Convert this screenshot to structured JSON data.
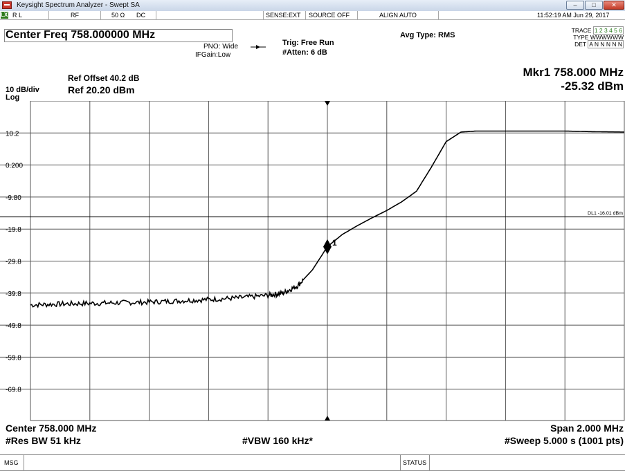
{
  "window": {
    "title": "Keysight Spectrum Analyzer - Swept SA",
    "controls": {
      "minimize": "–",
      "maximize": "□",
      "close": "✕"
    }
  },
  "status_bar": {
    "led": "LXI",
    "rl": "R L",
    "rf": "RF",
    "impedance": "50 Ω",
    "coupling": "DC",
    "sense": "SENSE:EXT",
    "source": "SOURCE OFF",
    "align": "ALIGN AUTO",
    "datetime": "11:52:19 AM Jun 29, 2017"
  },
  "header": {
    "center_freq": "Center Freq 758.000000 MHz",
    "pno": "PNO: Wide",
    "ifgain": "IFGain:Low",
    "trig": "Trig: Free Run",
    "atten": "#Atten: 6 dB",
    "avg_type": "Avg Type: RMS",
    "trace_label": "TRACE",
    "trace_values": "1 2 3 4 5 6",
    "type_label": "TYPE",
    "type_values": "WWWWWW",
    "det_label": "DET",
    "det_values": "A N N N N N",
    "ref_offset": "Ref Offset 40.2 dB",
    "scale": "10 dB/div",
    "log": "Log",
    "ref_level": "Ref 20.20 dBm",
    "marker_freq": "Mkr1 758.000 MHz",
    "marker_level": "-25.32 dBm"
  },
  "display_line": {
    "label": "DL1 -16.01 dBm",
    "value_dbm": -16.01
  },
  "chart_data": {
    "type": "line",
    "y_tick_labels": [
      "10.2",
      "0.200",
      "-9.80",
      "-19.8",
      "-29.8",
      "-39.8",
      "-49.8",
      "-59.8",
      "-69.8"
    ],
    "ylim": [
      -79.8,
      20.2
    ],
    "xlim_mhz": [
      757.0,
      759.0
    ],
    "series": [
      {
        "x": [
          757.0,
          757.1,
          757.2,
          757.3,
          757.4,
          757.5,
          757.6,
          757.7,
          757.8,
          757.85,
          757.9,
          757.95,
          758.0,
          758.05,
          758.1,
          758.15,
          758.2,
          758.25,
          758.3,
          758.35,
          758.4,
          758.45,
          758.5,
          758.55,
          758.6,
          758.7,
          758.8,
          758.9,
          759.0
        ],
        "y": [
          -43.5,
          -43.2,
          -43.0,
          -42.8,
          -42.6,
          -42.2,
          -41.8,
          -41.3,
          -40.5,
          -39.8,
          -37.5,
          -32.5,
          -25.3,
          -21.5,
          -18.8,
          -16.3,
          -14.0,
          -11.3,
          -8.0,
          -0.5,
          7.5,
          10.5,
          10.8,
          10.8,
          10.8,
          10.8,
          10.8,
          10.6,
          10.5
        ]
      }
    ],
    "marker": {
      "label": "1",
      "x": 758.0,
      "y": -25.32
    }
  },
  "footer": {
    "center": "Center 758.000 MHz",
    "span": "Span 2.000 MHz",
    "res_bw": "#Res BW 51 kHz",
    "vbw": "#VBW 160 kHz*",
    "sweep": "#Sweep  5.000 s (1001 pts)"
  },
  "msg_bar": {
    "msg": "MSG",
    "status": "STATUS"
  }
}
